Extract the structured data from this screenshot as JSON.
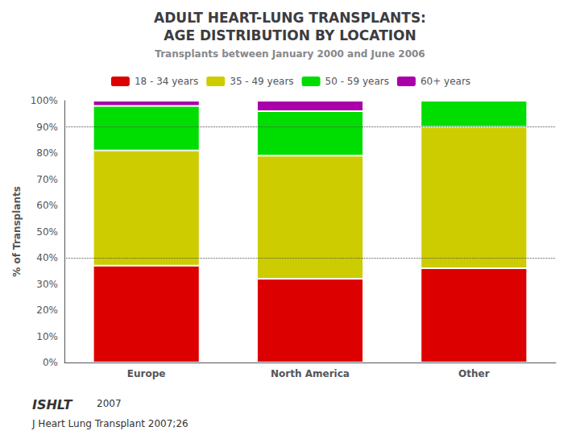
{
  "chart_data": {
    "type": "bar",
    "stacked": true,
    "title": "ADULT HEART-LUNG TRANSPLANTS:\nAGE DISTRIBUTION BY LOCATION",
    "subtitle": "Transplants between January 2000 and June 2006",
    "categories": [
      "Europe",
      "North America",
      "Other"
    ],
    "series": [
      {
        "name": "18 - 34 years",
        "color": "#dd0000",
        "values": [
          37,
          32,
          36
        ]
      },
      {
        "name": "35 - 49 years",
        "color": "#cccc00",
        "values": [
          44,
          47,
          54
        ]
      },
      {
        "name": "50 - 59 years",
        "color": "#00dd00",
        "values": [
          17,
          17,
          10
        ]
      },
      {
        "name": "60+ years",
        "color": "#aa00aa",
        "values": [
          2,
          4,
          0
        ]
      }
    ],
    "ylabel": "% of Transplants",
    "ylim": [
      0,
      100
    ],
    "yticks": [
      {
        "value": 0,
        "label": "0%"
      },
      {
        "value": 10,
        "label": "10%"
      },
      {
        "value": 20,
        "label": "20%"
      },
      {
        "value": 30,
        "label": "30%"
      },
      {
        "value": 40,
        "label": "40%"
      },
      {
        "value": 50,
        "label": "50%"
      },
      {
        "value": 60,
        "label": "60%"
      },
      {
        "value": 70,
        "label": "70%"
      },
      {
        "value": 80,
        "label": "80%"
      },
      {
        "value": 90,
        "label": "90%"
      },
      {
        "value": 100,
        "label": "100%"
      }
    ],
    "grid": [
      40,
      90
    ],
    "legend": "top",
    "annotations": [
      "ISHLT",
      "2007",
      "J Heart Lung Transplant 2007;26"
    ]
  }
}
